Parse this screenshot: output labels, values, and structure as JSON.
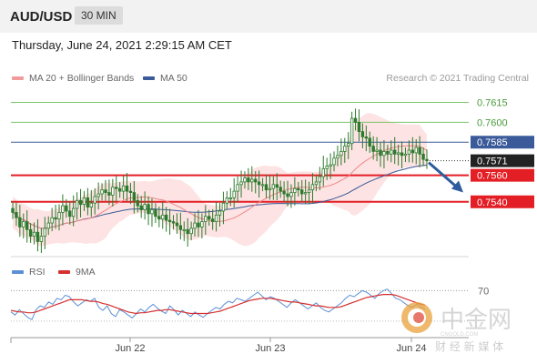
{
  "header": {
    "pair": "AUD/USD",
    "timeframe": "30 MIN",
    "datetime": "Thursday, June 24, 2021 2:29:15 AM CET"
  },
  "legend": {
    "ma20_label": "MA 20 + Bollinger Bands",
    "ma50_label": "MA 50",
    "copyright": "Research © 2021 Trading Central",
    "rsi_label": "RSI",
    "ma9_label": "9MA"
  },
  "colors": {
    "ma20": "#ee8888",
    "band": "#fcd9d9",
    "ma50": "#3a5a99",
    "resistance": "#7cc46a",
    "support": "#e31e24",
    "candle": "#2d7a2d",
    "rsi": "#5b8fd6",
    "rsi_ma": "#d63030"
  },
  "watermark": {
    "logo_text": "中金网",
    "sub_text": "财 经 新 媒 体",
    "url": "CNGOLD.COM"
  },
  "chart_data": [
    {
      "type": "candlestick",
      "y_range": [
        0.75,
        0.7625
      ],
      "x_labels": [
        "Jun 22",
        "Jun 23",
        "Jun 24"
      ],
      "levels": [
        {
          "value": 0.7615,
          "label": "0.7615",
          "kind": "resistance"
        },
        {
          "value": 0.76,
          "label": "0.7600",
          "kind": "resistance"
        },
        {
          "value": 0.7585,
          "label": "0.7585",
          "kind": "pivot"
        },
        {
          "value": 0.7571,
          "label": "0.7571",
          "kind": "current"
        },
        {
          "value": 0.756,
          "label": "0.7560",
          "kind": "support"
        },
        {
          "value": 0.754,
          "label": "0.7540",
          "kind": "support"
        }
      ],
      "close_series": [
        0.7532,
        0.7528,
        0.7521,
        0.7525,
        0.7519,
        0.7514,
        0.7517,
        0.751,
        0.7514,
        0.752,
        0.7524,
        0.7528,
        0.7527,
        0.7532,
        0.7537,
        0.7533,
        0.7529,
        0.7535,
        0.7541,
        0.7538,
        0.7543,
        0.7536,
        0.7539,
        0.7544,
        0.7546,
        0.7549,
        0.7547,
        0.7545,
        0.7551,
        0.755,
        0.7548,
        0.7552,
        0.7548,
        0.7547,
        0.7541,
        0.7537,
        0.7534,
        0.7538,
        0.7531,
        0.7534,
        0.7529,
        0.7527,
        0.753,
        0.7526,
        0.7525,
        0.7524,
        0.7522,
        0.7519,
        0.7519,
        0.7516,
        0.752,
        0.7524,
        0.7521,
        0.7525,
        0.7529,
        0.7527,
        0.7525,
        0.753,
        0.7533,
        0.7539,
        0.7543,
        0.7543,
        0.7548,
        0.7553,
        0.7555,
        0.7558,
        0.7555,
        0.7557,
        0.7555,
        0.7553,
        0.7553,
        0.7549,
        0.755,
        0.7553,
        0.7551,
        0.7548,
        0.7546,
        0.7544,
        0.7547,
        0.755,
        0.7549,
        0.7546,
        0.7547,
        0.7549,
        0.7553,
        0.7555,
        0.7559,
        0.7565,
        0.7567,
        0.7568,
        0.7573,
        0.7575,
        0.7578,
        0.7582,
        0.7584,
        0.7603,
        0.76,
        0.7593,
        0.7589,
        0.7588,
        0.7582,
        0.7578,
        0.7579,
        0.7575,
        0.7578,
        0.7576,
        0.7579,
        0.7576,
        0.7577,
        0.7575,
        0.7576,
        0.7579,
        0.7577,
        0.7581,
        0.7576,
        0.7572,
        0.7571
      ],
      "forecast_arrow": {
        "from": 0.7571,
        "to": 0.7556
      }
    },
    {
      "type": "line",
      "title": "RSI",
      "y_range": [
        0,
        100
      ],
      "ticks": [
        70
      ],
      "series": [
        {
          "name": "RSI",
          "values": [
            42,
            38,
            45,
            40,
            35,
            32,
            45,
            50,
            48,
            55,
            52,
            60,
            58,
            64,
            62,
            55,
            50,
            54,
            58,
            56,
            60,
            48,
            44,
            50,
            40,
            36,
            45,
            42,
            38,
            34,
            40,
            46,
            42,
            48,
            52,
            47,
            43,
            40,
            50,
            45,
            38,
            44,
            40,
            36,
            42,
            38,
            35,
            40,
            44,
            48,
            46,
            52,
            56,
            54,
            60,
            58,
            56,
            60,
            64,
            68,
            63,
            58,
            62,
            60,
            56,
            52,
            48,
            54,
            58,
            54,
            50,
            46,
            50,
            54,
            48,
            44,
            42,
            46,
            50,
            54,
            60,
            64,
            62,
            66,
            70,
            68,
            64,
            60,
            66,
            70,
            72,
            66,
            60,
            58,
            54,
            50,
            48,
            52,
            48,
            46
          ]
        },
        {
          "name": "9MA",
          "values": [
            44,
            43,
            42,
            42,
            41,
            41,
            42,
            44,
            46,
            48,
            50,
            52,
            54,
            56,
            58,
            58,
            58,
            58,
            57,
            56,
            56,
            55,
            53,
            52,
            50,
            48,
            46,
            44,
            42,
            41,
            40,
            41,
            41,
            42,
            43,
            44,
            44,
            45,
            45,
            44,
            43,
            42,
            41,
            40,
            40,
            40,
            40,
            40,
            41,
            42,
            43,
            45,
            47,
            49,
            51,
            53,
            55,
            57,
            58,
            59,
            60,
            60,
            60,
            59,
            58,
            57,
            56,
            55,
            55,
            54,
            53,
            52,
            51,
            50,
            50,
            49,
            48,
            48,
            48,
            49,
            51,
            53,
            55,
            57,
            59,
            61,
            62,
            63,
            64,
            65,
            65,
            65,
            64,
            62,
            60,
            58,
            56,
            54,
            52,
            51
          ]
        }
      ]
    }
  ]
}
